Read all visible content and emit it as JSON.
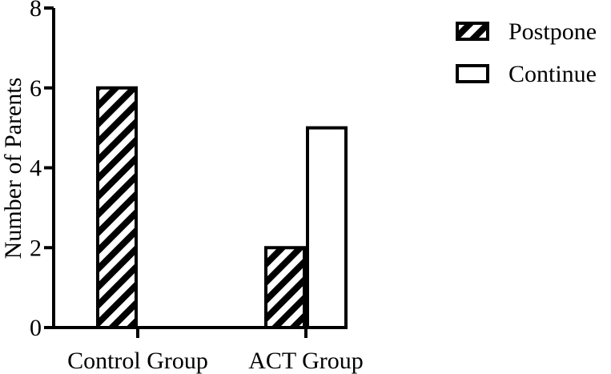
{
  "chart_data": {
    "type": "bar",
    "title": "",
    "xlabel": "",
    "ylabel": "Number of Parents",
    "ylim": [
      0,
      8
    ],
    "yticks": [
      0,
      2,
      4,
      6,
      8
    ],
    "categories": [
      "Control Group",
      "ACT Group"
    ],
    "series": [
      {
        "name": "Postpone",
        "values": [
          6,
          2
        ],
        "fill": "hatched",
        "color": "#000000"
      },
      {
        "name": "Continue",
        "values": [
          0,
          5
        ],
        "fill": "#ffffff",
        "color": "#000000"
      }
    ],
    "legend": {
      "position": "top-right"
    },
    "grid": false
  }
}
